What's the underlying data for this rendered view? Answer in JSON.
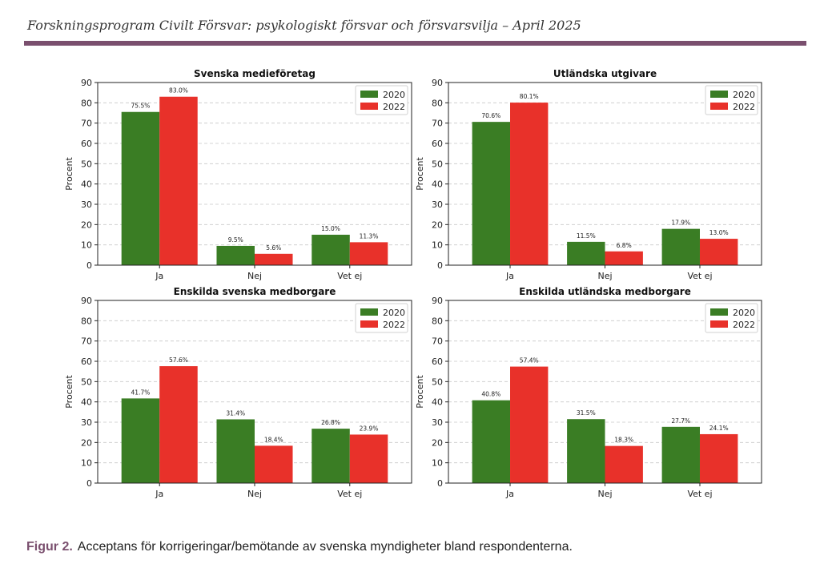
{
  "header": {
    "title": "Forskningsprogram Civilt Försvar: psykologiskt försvar och försvarsvilja – April 2025"
  },
  "caption": {
    "label": "Figur 2.",
    "text": "Acceptans för korrigeringar/bemötande av svenska myndigheter bland respondenterna."
  },
  "colors": {
    "accent": "#7a4f6e",
    "series_2020": "#3a7d24",
    "series_2022": "#e8312a",
    "caption_label": "#7a4f6e"
  },
  "chart_data": [
    {
      "type": "bar",
      "title": "Svenska medieföretag",
      "ylabel": "Procent",
      "xlabel": "",
      "categories": [
        "Ja",
        "Nej",
        "Vet ej"
      ],
      "ylim": [
        0,
        90
      ],
      "yticks": [
        0,
        10,
        20,
        30,
        40,
        50,
        60,
        70,
        80,
        90
      ],
      "grid": true,
      "legend": "top-right",
      "series": [
        {
          "name": "2020",
          "values": [
            75.5,
            9.5,
            15.0
          ],
          "labels": [
            "75.5%",
            "9.5%",
            "15.0%"
          ]
        },
        {
          "name": "2022",
          "values": [
            83.0,
            5.6,
            11.3
          ],
          "labels": [
            "83.0%",
            "5.6%",
            "11.3%"
          ]
        }
      ]
    },
    {
      "type": "bar",
      "title": "Utländska utgivare",
      "ylabel": "Procent",
      "xlabel": "",
      "categories": [
        "Ja",
        "Nej",
        "Vet ej"
      ],
      "ylim": [
        0,
        90
      ],
      "yticks": [
        0,
        10,
        20,
        30,
        40,
        50,
        60,
        70,
        80,
        90
      ],
      "grid": true,
      "legend": "top-right",
      "series": [
        {
          "name": "2020",
          "values": [
            70.6,
            11.5,
            17.9
          ],
          "labels": [
            "70.6%",
            "11.5%",
            "17.9%"
          ]
        },
        {
          "name": "2022",
          "values": [
            80.1,
            6.8,
            13.0
          ],
          "labels": [
            "80.1%",
            "6.8%",
            "13.0%"
          ]
        }
      ]
    },
    {
      "type": "bar",
      "title": "Enskilda svenska medborgare",
      "ylabel": "Procent",
      "xlabel": "",
      "categories": [
        "Ja",
        "Nej",
        "Vet ej"
      ],
      "ylim": [
        0,
        90
      ],
      "yticks": [
        0,
        10,
        20,
        30,
        40,
        50,
        60,
        70,
        80,
        90
      ],
      "grid": true,
      "legend": "top-right",
      "series": [
        {
          "name": "2020",
          "values": [
            41.7,
            31.4,
            26.8
          ],
          "labels": [
            "41.7%",
            "31.4%",
            "26.8%"
          ]
        },
        {
          "name": "2022",
          "values": [
            57.6,
            18.4,
            23.9
          ],
          "labels": [
            "57.6%",
            "18.4%",
            "23.9%"
          ]
        }
      ]
    },
    {
      "type": "bar",
      "title": "Enskilda utländska medborgare",
      "ylabel": "Procent",
      "xlabel": "",
      "categories": [
        "Ja",
        "Nej",
        "Vet ej"
      ],
      "ylim": [
        0,
        90
      ],
      "yticks": [
        0,
        10,
        20,
        30,
        40,
        50,
        60,
        70,
        80,
        90
      ],
      "grid": true,
      "legend": "top-right",
      "series": [
        {
          "name": "2020",
          "values": [
            40.8,
            31.5,
            27.7
          ],
          "labels": [
            "40.8%",
            "31.5%",
            "27.7%"
          ]
        },
        {
          "name": "2022",
          "values": [
            57.4,
            18.3,
            24.1
          ],
          "labels": [
            "57.4%",
            "18.3%",
            "24.1%"
          ]
        }
      ]
    }
  ]
}
